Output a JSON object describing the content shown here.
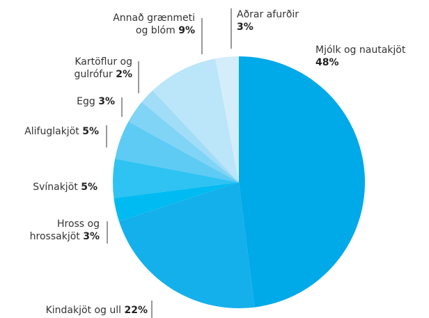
{
  "chart_data": {
    "type": "pie",
    "categories": [
      "Mjólk og nautakjöt",
      "Kindakjöt og ull",
      "Hross og hrossakjöt",
      "Svínakjöt",
      "Alifuglakjöt",
      "Egg",
      "Kartöflur og gulrófur",
      "Annað grænmeti og blóm",
      "Aðrar afurðir"
    ],
    "values": [
      48,
      22,
      3,
      5,
      5,
      3,
      2,
      9,
      3
    ],
    "value_labels": [
      "48%",
      "22%",
      "3%",
      "5%",
      "5%",
      "3%",
      "2%",
      "9%",
      "3%"
    ],
    "colors": [
      "#00a9e8",
      "#14b0ec",
      "#00bbf2",
      "#2ec3f3",
      "#5ecbf4",
      "#80d4f6",
      "#a2ddf8",
      "#bbe5f9",
      "#d3eefa"
    ]
  }
}
